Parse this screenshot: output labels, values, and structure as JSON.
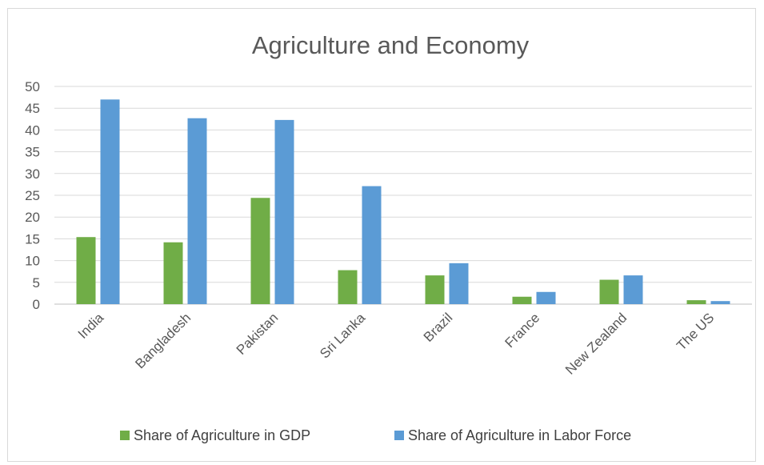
{
  "chart_data": {
    "type": "bar",
    "title": "Agriculture and Economy",
    "xlabel": "",
    "ylabel": "",
    "categories": [
      "India",
      "Bangladesh",
      "Pakistan",
      "Sri Lanka",
      "Brazil",
      "France",
      "New Zealand",
      "The US"
    ],
    "series": [
      {
        "name": "Share of Agriculture in GDP",
        "color": "#70ad47",
        "values": [
          15.4,
          14.2,
          24.4,
          7.8,
          6.6,
          1.7,
          5.6,
          0.9
        ]
      },
      {
        "name": "Share of Agriculture in Labor Force",
        "color": "#5b9bd5",
        "values": [
          47.0,
          42.7,
          42.3,
          27.1,
          9.4,
          2.8,
          6.6,
          0.7
        ]
      }
    ],
    "ylim": [
      0,
      50
    ],
    "yticks": [
      0,
      5,
      10,
      15,
      20,
      25,
      30,
      35,
      40,
      45,
      50
    ],
    "grid": true,
    "legend_position": "bottom"
  }
}
